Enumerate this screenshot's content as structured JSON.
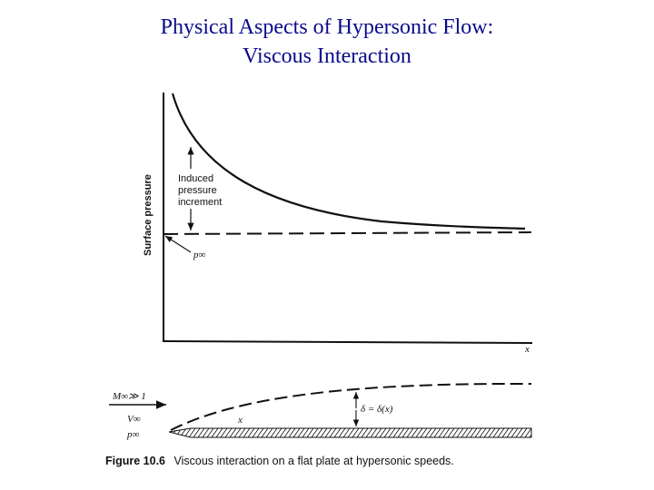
{
  "title": {
    "line1": "Physical Aspects of Hypersonic Flow:",
    "line2": "Viscous Interaction"
  },
  "graph": {
    "ylabel": "Surface pressure",
    "xlabel": "x",
    "curve_annotation": [
      "Induced",
      "pressure",
      "increment"
    ],
    "p_inf_label": "p∞"
  },
  "plate": {
    "mach_label": "M∞≫ 1",
    "velocity_label": "V∞",
    "pressure_label": "p∞",
    "x_label": "x",
    "delta_label": "δ = δ(x)"
  },
  "caption": {
    "figure_number": "Figure 10.6",
    "text": "Viscous interaction on a flat plate at hypersonic speeds."
  }
}
